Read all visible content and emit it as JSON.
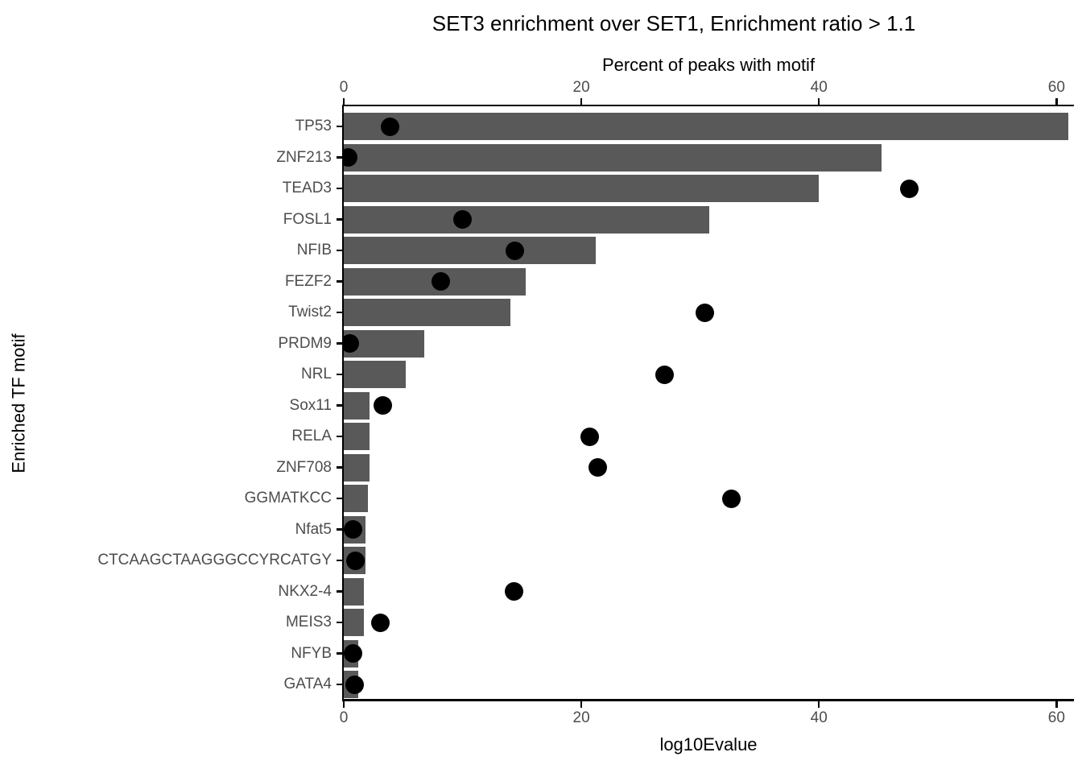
{
  "chart_data": {
    "type": "bar",
    "orientation": "horizontal",
    "title": "SET3 enrichment over SET1, Enrichment ratio > 1.1",
    "categories": [
      "TP53",
      "ZNF213",
      "TEAD3",
      "FOSL1",
      "NFIB",
      "FEZF2",
      "Twist2",
      "PRDM9",
      "NRL",
      "Sox11",
      "RELA",
      "ZNF708",
      "GGMATKCC",
      "Nfat5",
      "CTCAAGCTAAGGGCCYRCATGY",
      "NKX2-4",
      "MEIS3",
      "NFYB",
      "GATA4"
    ],
    "series": [
      {
        "name": "Percent of peaks with motif",
        "glyph": "bar",
        "values": [
          61.0,
          45.3,
          40.0,
          30.8,
          21.2,
          15.3,
          14.0,
          6.8,
          5.2,
          2.2,
          2.2,
          2.2,
          2.0,
          1.8,
          1.8,
          1.7,
          1.7,
          1.2,
          1.2
        ]
      },
      {
        "name": "log10Evalue",
        "glyph": "point",
        "values": [
          3.9,
          0.4,
          47.6,
          10.0,
          14.4,
          8.2,
          30.4,
          0.5,
          27.0,
          3.3,
          20.7,
          21.4,
          32.6,
          0.8,
          1.0,
          14.3,
          3.1,
          0.8,
          0.9
        ]
      }
    ],
    "top_axis": {
      "title": "Percent of peaks with motif",
      "ticks": [
        0,
        20,
        40,
        60
      ]
    },
    "bottom_axis": {
      "title": "log10Evalue",
      "ticks": [
        0,
        20,
        40,
        60
      ]
    },
    "y_axis": {
      "title": "Enriched TF motif"
    },
    "xlim": [
      0,
      61.4
    ],
    "grid": false,
    "legend": "none",
    "colors": {
      "bar": "#595959",
      "point": "#000000",
      "axis_text": "#4D4D4D",
      "axis_line": "#000000",
      "title_text": "#000000",
      "background": "#FFFFFF"
    }
  }
}
